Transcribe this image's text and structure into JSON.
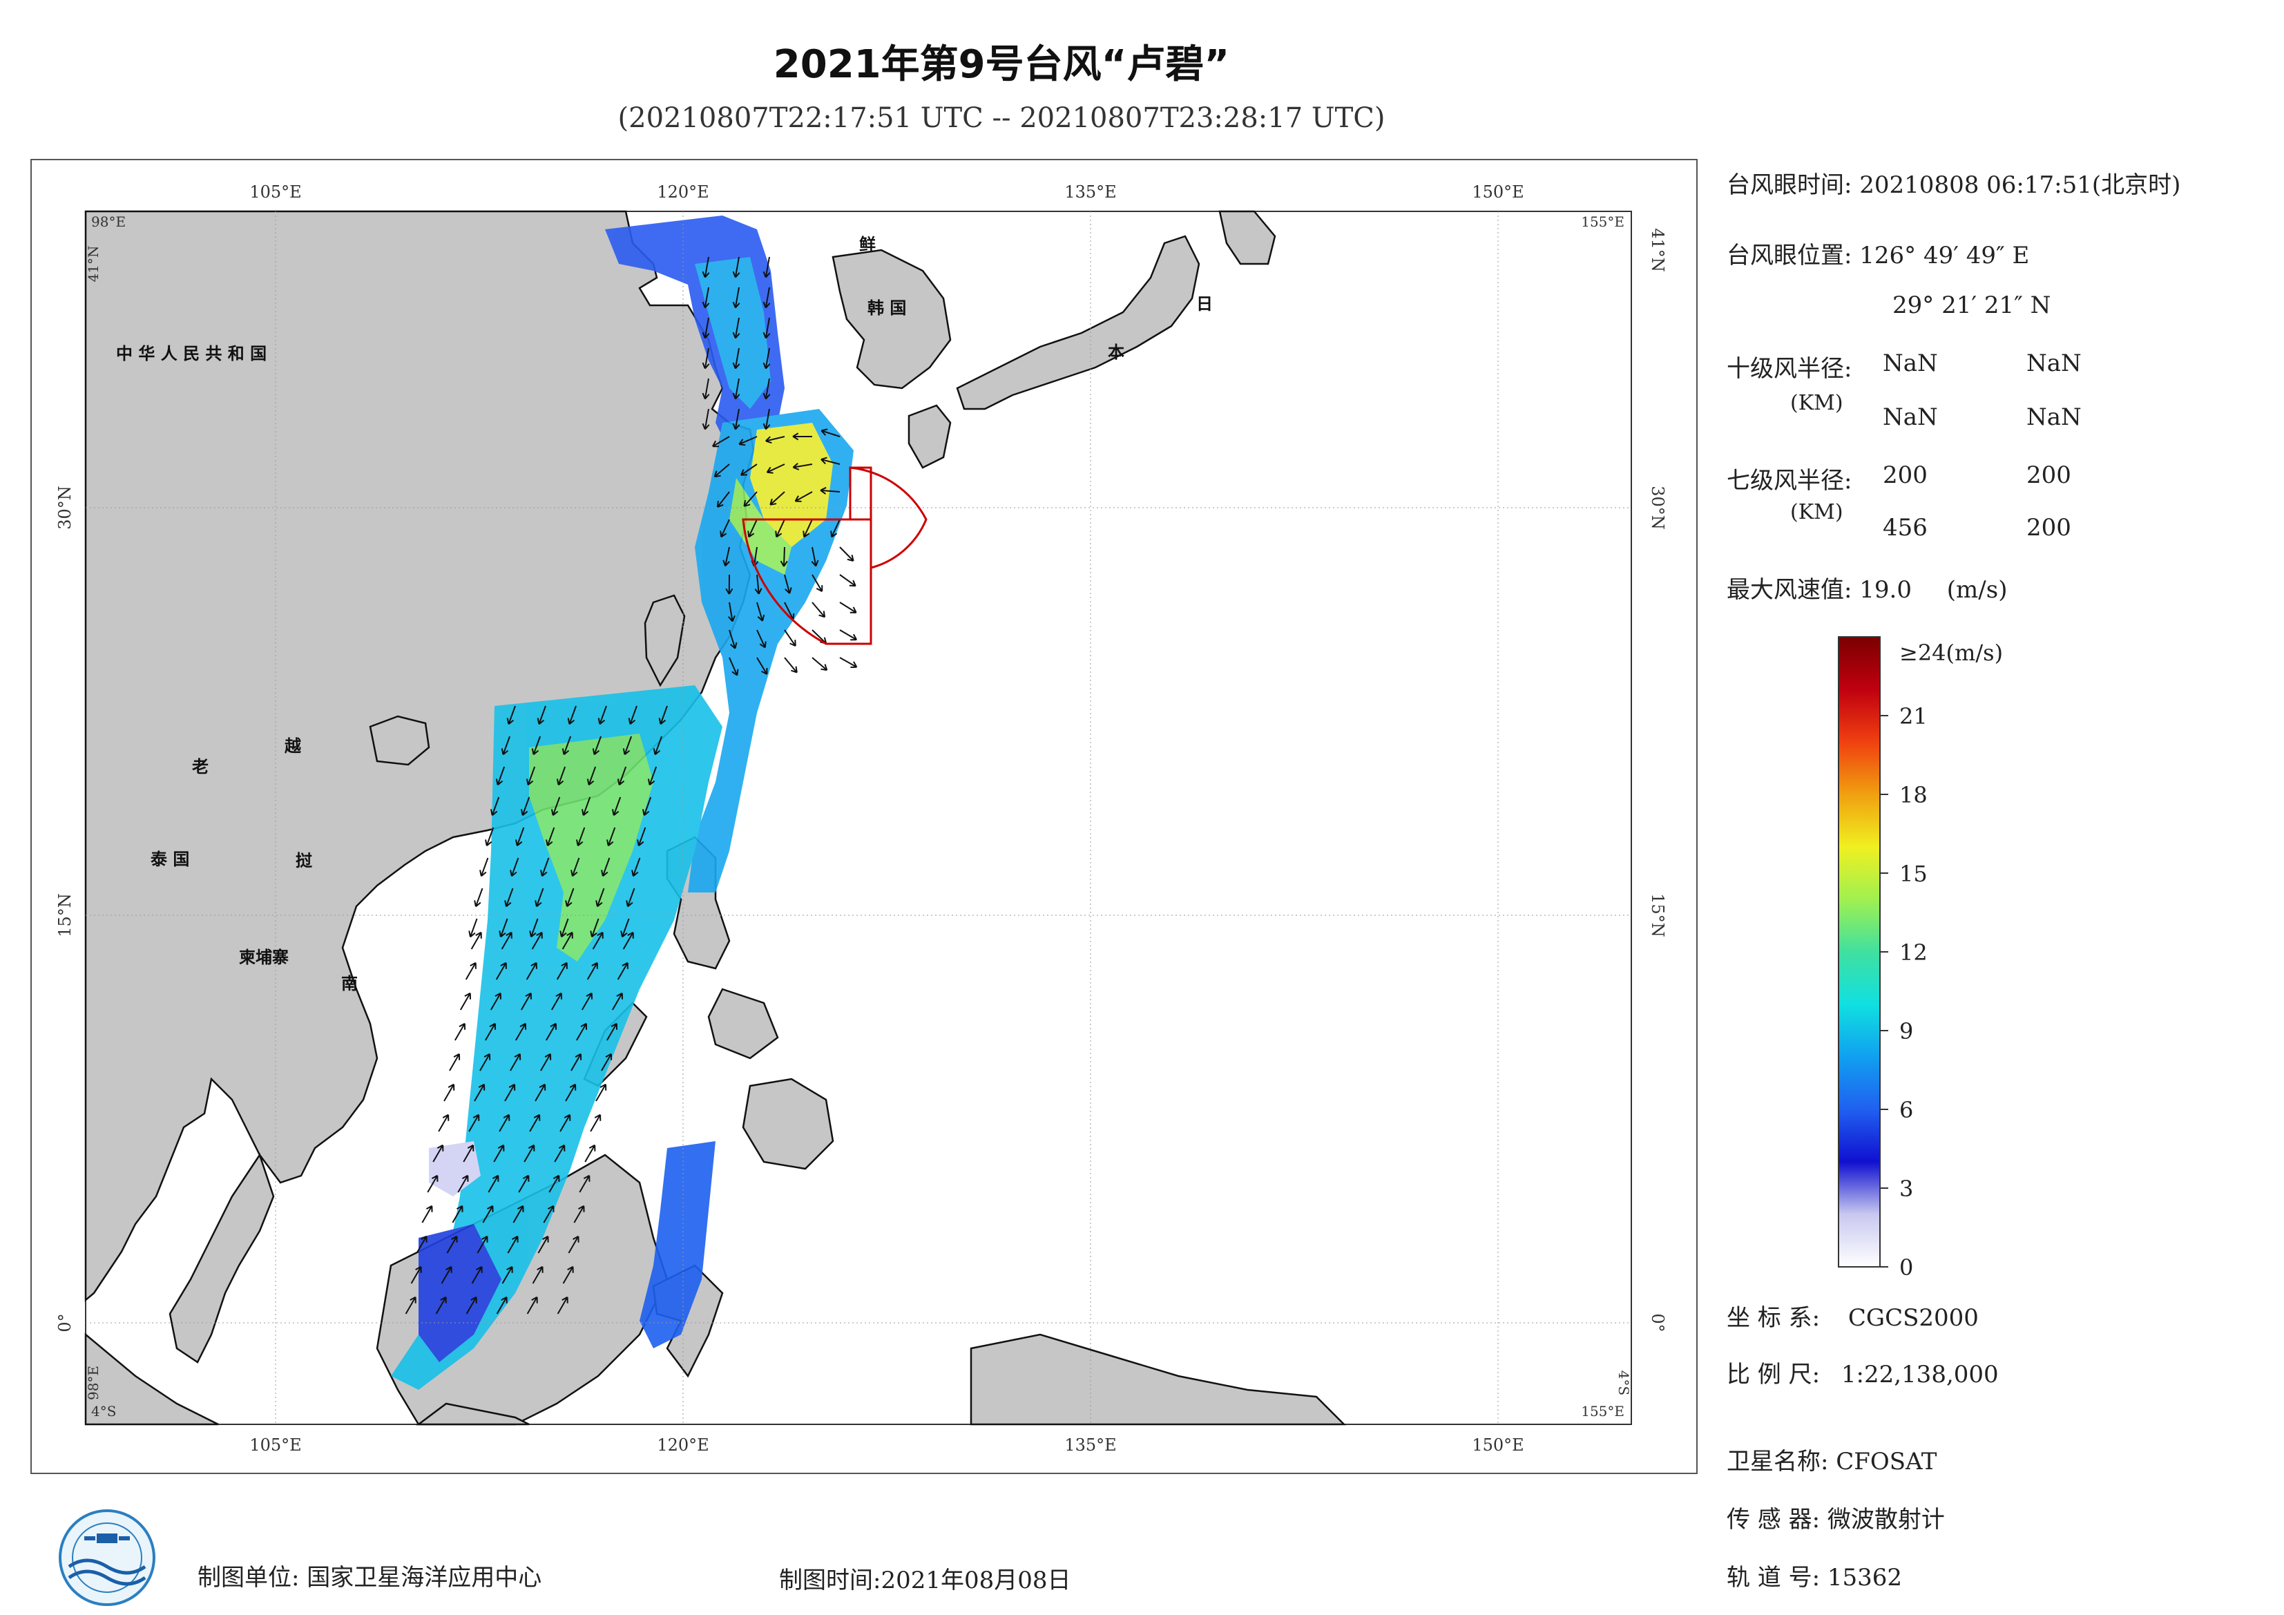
{
  "header": {
    "title": "2021年第9号台风“卢碧”",
    "subtitle": "(20210807T22:17:51 UTC -- 20210807T23:28:17 UTC)"
  },
  "map": {
    "lon_ticks": [
      "105°E",
      "120°E",
      "135°E",
      "150°E"
    ],
    "lat_ticks": [
      "30°N",
      "15°N",
      "0°"
    ],
    "lat_ticks_right": [
      "41°N",
      "30°N",
      "15°N",
      "0°"
    ],
    "corners": {
      "top_left_lon": "98°E",
      "top_left_lat": "41°N",
      "top_right_lon": "155°E",
      "bottom_left_lat": "4°S",
      "bottom_left_lon": "4°S",
      "bottom_left_lon_vertical": "98°E",
      "bottom_right_lon": "155°E",
      "bottom_right_lat": "4°S"
    },
    "place_names": {
      "china": "中 华 人 民 共 和 国",
      "korea_north": "鲜",
      "korea_south": "韩 国",
      "japan_1": "日",
      "japan_2": "本",
      "laos": "老",
      "vietnam_1": "越",
      "vietnam_2": "挝",
      "vietnam_3": "南",
      "thailand": "泰 国",
      "cambodia": "柬埔寨"
    },
    "colors": {
      "land": "#c6c6c6",
      "sea": "#ffffff",
      "wind_radius_line": "#cc0000",
      "arrow": "#111111"
    },
    "typhoon_center": {
      "lon": 126.83,
      "lat": 29.36
    }
  },
  "info_panel": {
    "eye_time_label": "台风眼时间:",
    "eye_time_value": "20210808 06:17:51(北京时)",
    "eye_pos_label": "台风眼位置:",
    "eye_lon": "126° 49′ 49″ E",
    "eye_lat": "29° 21′ 21″ N",
    "r10_label": "十级风半径:",
    "r10_unit": "(KM)",
    "r10_values": [
      "NaN",
      "NaN",
      "NaN",
      "NaN"
    ],
    "r7_label": "七级风半径:",
    "r7_unit": "(KM)",
    "r7_values": [
      "200",
      "200",
      "456",
      "200"
    ],
    "max_wind_label": "最大风速值:",
    "max_wind_value": "19.0",
    "max_wind_unit": "(m/s)"
  },
  "colorbar": {
    "top_label": "≥24(m/s)",
    "tick_labels": [
      "21",
      "18",
      "15",
      "12",
      "9",
      "6",
      "3",
      "0"
    ],
    "tick_values": [
      21,
      18,
      15,
      12,
      9,
      6,
      3,
      0
    ],
    "max": 24,
    "colors": [
      "#ffffff",
      "#c8c8f0",
      "#1010d0",
      "#2060f0",
      "#10a0f0",
      "#10e0e0",
      "#40e0a0",
      "#a0f050",
      "#f0f020",
      "#f0a010",
      "#f04010",
      "#c00010",
      "#7a0000"
    ]
  },
  "meta_panel": {
    "crs_label": "坐 标 系:",
    "crs_value": "CGCS2000",
    "scale_label": "比 例 尺:",
    "scale_value": "1:22,138,000",
    "satellite_label": "卫星名称:",
    "satellite_value": "CFOSAT",
    "sensor_label": "传 感 器:",
    "sensor_value": "微波散射计",
    "orbit_label": "轨 道 号:",
    "orbit_value": "15362"
  },
  "footer": {
    "producer": "制图单位: 国家卫星海洋应用中心",
    "made_time": "制图时间:2021年08月08日"
  }
}
